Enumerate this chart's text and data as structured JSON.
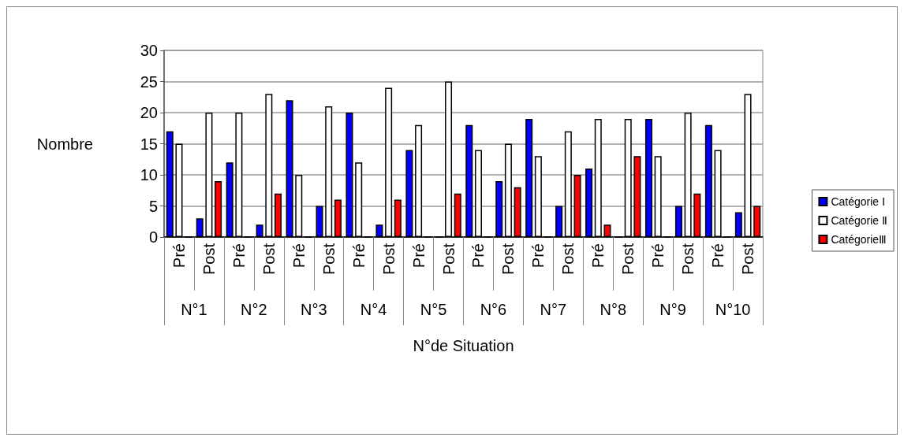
{
  "chart_data": {
    "type": "bar",
    "xlabel": "N°de Situation",
    "ylabel": "Nombre",
    "categories": [
      "Pré",
      "Post",
      "Pré",
      "Post",
      "Pré",
      "Post",
      "Pré",
      "Post",
      "Pré",
      "Post",
      "Pré",
      "Post",
      "Pré",
      "Post",
      "Pré",
      "Post",
      "Pré",
      "Post",
      "Pré",
      "Post"
    ],
    "annotations": [
      "N°1",
      "N°2",
      "N°3",
      "N°4",
      "N°5",
      "N°6",
      "N°7",
      "N°8",
      "N°9",
      "N°10"
    ],
    "series": [
      {
        "name": "Catégorie Ⅰ",
        "color": "#0000ff",
        "values": [
          17,
          3,
          12,
          2,
          22,
          5,
          20,
          2,
          14,
          0,
          18,
          9,
          19,
          5,
          11,
          0,
          19,
          5,
          18,
          4
        ]
      },
      {
        "name": "Catégorie Ⅱ",
        "color": "#ffffff",
        "values": [
          15,
          20,
          20,
          23,
          10,
          21,
          12,
          24,
          18,
          25,
          14,
          15,
          13,
          17,
          19,
          19,
          13,
          20,
          14,
          23
        ]
      },
      {
        "name": "CatégorieⅢ",
        "color": "#ff0000",
        "values": [
          0,
          9,
          0,
          7,
          0,
          6,
          0,
          6,
          0,
          7,
          0,
          8,
          0,
          10,
          2,
          13,
          0,
          7,
          0,
          5
        ]
      }
    ],
    "ylim": [
      0,
      30
    ],
    "yticks": [
      0,
      5,
      10,
      15,
      20,
      25,
      30
    ],
    "grid": "y",
    "legend": "right"
  }
}
